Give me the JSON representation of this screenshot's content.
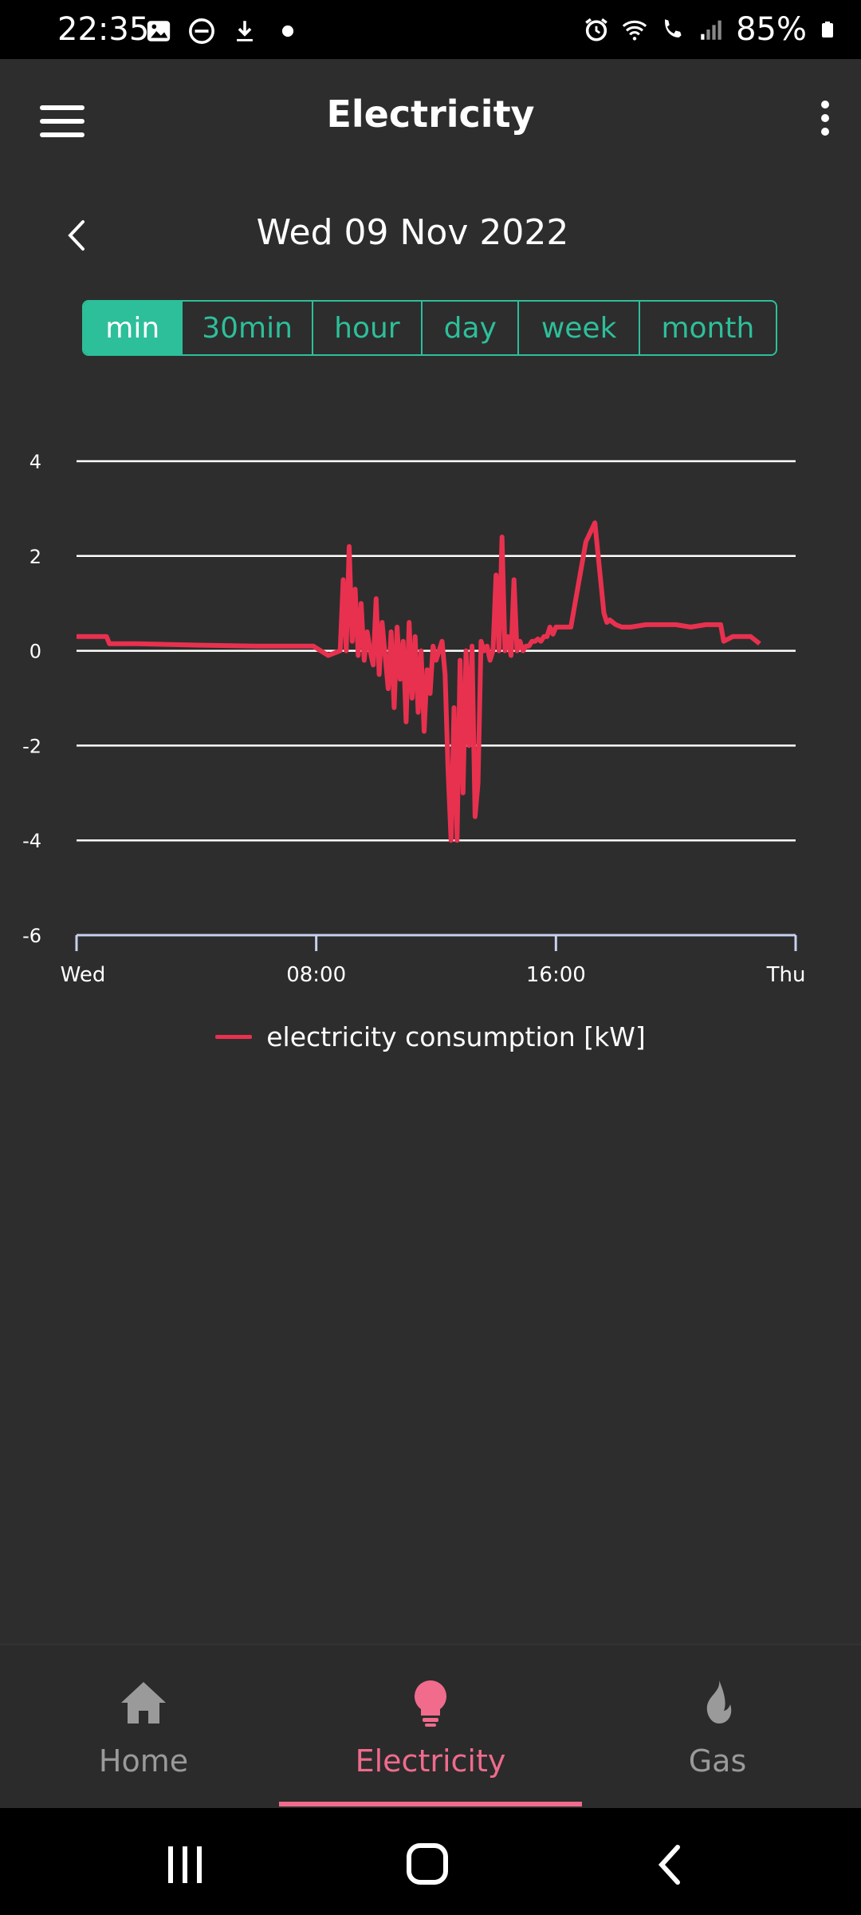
{
  "status_bar": {
    "time": "22:35",
    "battery": "85%",
    "icons_left": [
      "image-icon",
      "dnd-icon",
      "download-icon",
      "dot-icon"
    ],
    "icons_right": [
      "alarm-icon",
      "wifi-icon",
      "wifi-call-icon",
      "signal-icon",
      "battery-icon"
    ]
  },
  "app_bar": {
    "title": "Electricity"
  },
  "date_nav": {
    "date": "Wed 09 Nov 2022"
  },
  "segments": [
    {
      "label": "min",
      "active": true
    },
    {
      "label": "30min",
      "active": false
    },
    {
      "label": "hour",
      "active": false
    },
    {
      "label": "day",
      "active": false
    },
    {
      "label": "week",
      "active": false
    },
    {
      "label": "month",
      "active": false
    }
  ],
  "chart_data": {
    "type": "line",
    "title": "",
    "xlabel": "",
    "ylabel": "",
    "ylim": [
      -6,
      4
    ],
    "yticks": [
      4,
      2,
      0,
      -2,
      -4,
      -6
    ],
    "xticks": [
      {
        "label": "Wed",
        "hour": 0
      },
      {
        "label": "08:00",
        "hour": 8
      },
      {
        "label": "16:00",
        "hour": 16
      },
      {
        "label": "Thu",
        "hour": 24
      }
    ],
    "xlim_hours": [
      0,
      24
    ],
    "grid": true,
    "legend_position": "bottom",
    "series": [
      {
        "name": "electricity consumption [kW]",
        "color": "#e8314f",
        "x_hours": [
          0.0,
          1.0,
          1.1,
          2.0,
          4.0,
          6.0,
          7.9,
          8.4,
          8.8,
          8.9,
          9.0,
          9.1,
          9.2,
          9.3,
          9.4,
          9.5,
          9.6,
          9.7,
          9.8,
          9.9,
          10.0,
          10.1,
          10.2,
          10.4,
          10.5,
          10.6,
          10.7,
          10.8,
          10.9,
          11.0,
          11.1,
          11.2,
          11.3,
          11.4,
          11.5,
          11.6,
          11.7,
          11.8,
          11.9,
          12.0,
          12.1,
          12.2,
          12.3,
          12.4,
          12.5,
          12.6,
          12.7,
          12.8,
          12.9,
          13.0,
          13.1,
          13.2,
          13.3,
          13.4,
          13.5,
          13.6,
          13.7,
          13.8,
          13.9,
          14.0,
          14.1,
          14.2,
          14.3,
          14.4,
          14.5,
          14.6,
          14.7,
          14.8,
          14.9,
          15.0,
          15.1,
          15.2,
          15.3,
          15.4,
          15.5,
          15.6,
          15.7,
          15.8,
          15.9,
          16.0,
          16.5,
          17.0,
          17.3,
          17.6,
          17.7,
          17.8,
          17.9,
          18.0,
          18.2,
          18.5,
          19.0,
          19.5,
          20.0,
          20.5,
          21.0,
          21.5,
          21.6,
          21.9,
          22.5,
          22.8
        ],
        "y": [
          0.3,
          0.3,
          0.15,
          0.15,
          0.12,
          0.1,
          0.1,
          -0.1,
          0.0,
          1.5,
          0.0,
          2.2,
          0.2,
          1.3,
          -0.1,
          1.0,
          -0.2,
          0.4,
          0.0,
          -0.3,
          1.1,
          -0.5,
          0.6,
          -0.8,
          0.4,
          -1.2,
          0.5,
          -0.6,
          0.2,
          -1.5,
          0.6,
          -1.0,
          0.3,
          -1.3,
          0.0,
          -1.7,
          -0.4,
          -0.9,
          0.1,
          -0.2,
          0.0,
          0.2,
          -0.5,
          -2.5,
          -4.0,
          -1.2,
          -4.0,
          -0.2,
          -3.0,
          0.0,
          -2.0,
          0.1,
          -3.5,
          -2.8,
          0.2,
          0.0,
          0.1,
          -0.2,
          0.0,
          1.6,
          0.0,
          2.4,
          0.0,
          0.3,
          -0.1,
          1.5,
          0.0,
          0.2,
          0.0,
          0.1,
          0.1,
          0.2,
          0.2,
          0.25,
          0.2,
          0.3,
          0.3,
          0.5,
          0.35,
          0.5,
          0.5,
          2.3,
          2.7,
          0.8,
          0.6,
          0.65,
          0.6,
          0.55,
          0.5,
          0.5,
          0.55,
          0.55,
          0.55,
          0.5,
          0.55,
          0.55,
          0.2,
          0.3,
          0.3,
          0.15
        ]
      }
    ]
  },
  "legend": {
    "label": "electricity consumption [kW]"
  },
  "bottom_nav": {
    "items": [
      {
        "label": "Home",
        "icon": "home-icon",
        "active": false
      },
      {
        "label": "Electricity",
        "icon": "bulb-icon",
        "active": true
      },
      {
        "label": "Gas",
        "icon": "flame-icon",
        "active": false
      }
    ]
  },
  "colors": {
    "accent": "#2dbf9a",
    "line": "#e8314f",
    "nav_active": "#f06b8c",
    "background": "#2d2d2d"
  }
}
